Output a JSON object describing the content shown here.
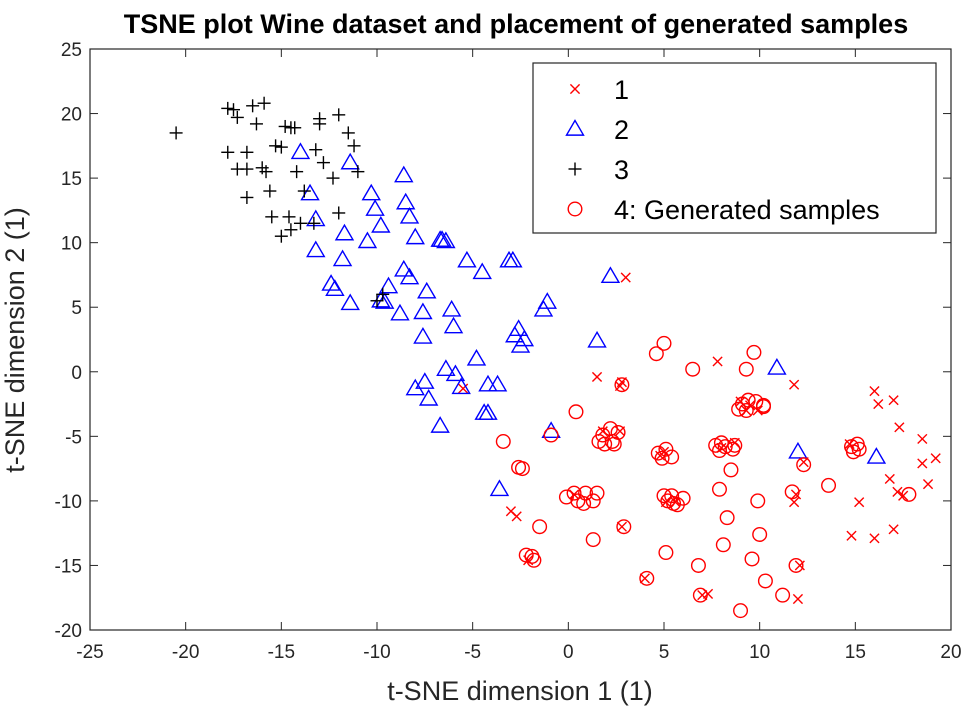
{
  "chart_data": {
    "type": "scatter",
    "title": "TSNE plot Wine dataset and placement of generated samples",
    "xlabel": "t-SNE dimension 1 (1)",
    "ylabel": "t-SNE dimension 2 (1)",
    "xlim": [
      -25,
      20
    ],
    "ylim": [
      -20,
      25
    ],
    "xticks": [
      -25,
      -20,
      -15,
      -10,
      -5,
      0,
      5,
      10,
      15,
      20
    ],
    "yticks": [
      -20,
      -15,
      -10,
      -5,
      0,
      5,
      10,
      15,
      20,
      25
    ],
    "grid": false,
    "legend_position": "top-right",
    "series": [
      {
        "name": "1",
        "marker": "x",
        "color": "#ff0000",
        "points": [
          [
            3,
            7.3
          ],
          [
            1.5,
            -0.4
          ],
          [
            2.8,
            -0.8
          ],
          [
            7.8,
            0.8
          ],
          [
            11.8,
            -1
          ],
          [
            16,
            -1.5
          ],
          [
            17,
            -2.2
          ],
          [
            16.2,
            -2.5
          ],
          [
            17.3,
            -4.3
          ],
          [
            18.5,
            -5.2
          ],
          [
            19.2,
            -6.7
          ],
          [
            18.5,
            -7.1
          ],
          [
            16.8,
            -8.3
          ],
          [
            17.2,
            -9.3
          ],
          [
            17.5,
            -9.6
          ],
          [
            18.8,
            -8.7
          ],
          [
            15.2,
            -10.1
          ],
          [
            17,
            -12.2
          ],
          [
            16,
            -12.9
          ],
          [
            14.8,
            -12.7
          ],
          [
            11.9,
            -9.5
          ],
          [
            11.8,
            -10.1
          ],
          [
            12.3,
            -7
          ],
          [
            14.7,
            -5.6
          ],
          [
            9.5,
            -2.6
          ],
          [
            9,
            -2.3
          ],
          [
            9.9,
            -3
          ],
          [
            9.3,
            -3
          ],
          [
            8.7,
            -5.5
          ],
          [
            8,
            -5.9
          ],
          [
            5,
            -6.2
          ],
          [
            4.8,
            -6.5
          ],
          [
            2.7,
            -4.6
          ],
          [
            1.8,
            -4.6
          ],
          [
            2.7,
            -1.1
          ],
          [
            -5.5,
            -1.3
          ],
          [
            -3,
            -10.8
          ],
          [
            -2.7,
            -11.2
          ],
          [
            -2.1,
            -14.6
          ],
          [
            0.3,
            -9.5
          ],
          [
            5.1,
            -10.1
          ],
          [
            5.6,
            -10.1
          ],
          [
            7,
            -17.3
          ],
          [
            7.3,
            -17.2
          ],
          [
            12,
            -17.6
          ],
          [
            12.1,
            -15
          ],
          [
            4,
            -16
          ],
          [
            2.8,
            -12
          ]
        ]
      },
      {
        "name": "2",
        "marker": "triangle",
        "color": "#0000ff",
        "points": [
          [
            -14,
            17
          ],
          [
            -13.5,
            13.8
          ],
          [
            -11.4,
            16.2
          ],
          [
            -8.6,
            15.2
          ],
          [
            -8.5,
            13.1
          ],
          [
            -8.3,
            12
          ],
          [
            -10.3,
            13.8
          ],
          [
            -10.1,
            12.6
          ],
          [
            -11.7,
            10.7
          ],
          [
            -10.5,
            10.1
          ],
          [
            -9.8,
            11.3
          ],
          [
            -13.2,
            11.8
          ],
          [
            -13.2,
            9.4
          ],
          [
            -11.8,
            8.7
          ],
          [
            -8,
            10.4
          ],
          [
            -6.7,
            10.2
          ],
          [
            -6.6,
            10.2
          ],
          [
            -6.4,
            10.1
          ],
          [
            -3.1,
            8.6
          ],
          [
            -2.9,
            8.6
          ],
          [
            -4.5,
            7.7
          ],
          [
            -5.3,
            8.6
          ],
          [
            -8.6,
            7.9
          ],
          [
            -8.3,
            7.3
          ],
          [
            -9.4,
            6.6
          ],
          [
            -9.6,
            5.4
          ],
          [
            -9.8,
            5.5
          ],
          [
            -7.4,
            6.2
          ],
          [
            -7.6,
            4.6
          ],
          [
            -8.8,
            4.5
          ],
          [
            -6.1,
            4.8
          ],
          [
            -6,
            3.5
          ],
          [
            -7.6,
            2.7
          ],
          [
            -12.4,
            6.8
          ],
          [
            -12.2,
            6.4
          ],
          [
            -11.4,
            5.3
          ],
          [
            -1.1,
            5.4
          ],
          [
            -1.3,
            4.8
          ],
          [
            -2.8,
            2.8
          ],
          [
            -2.6,
            3.3
          ],
          [
            -2.3,
            2.5
          ],
          [
            -2.5,
            2
          ],
          [
            1.5,
            2.4
          ],
          [
            2.2,
            7.4
          ],
          [
            -4.8,
            1
          ],
          [
            -6.4,
            0.2
          ],
          [
            -5.9,
            -0.2
          ],
          [
            -5.6,
            -1.2
          ],
          [
            -4.2,
            -1
          ],
          [
            -3.7,
            -1
          ],
          [
            -4.4,
            -3.2
          ],
          [
            -4.2,
            -3.2
          ],
          [
            -7.5,
            -0.8
          ],
          [
            -7.3,
            -2.1
          ],
          [
            -8,
            -1.3
          ],
          [
            -6.7,
            -4.2
          ],
          [
            -0.9,
            -4.6
          ],
          [
            10.9,
            0.3
          ],
          [
            12,
            -6.2
          ],
          [
            16.1,
            -6.6
          ],
          [
            -3.6,
            -9.1
          ]
        ]
      },
      {
        "name": "3",
        "marker": "plus",
        "color": "#000000",
        "points": [
          [
            -20.5,
            18.5
          ],
          [
            -17.8,
            20.4
          ],
          [
            -17.5,
            20.3
          ],
          [
            -16.5,
            20.6
          ],
          [
            -15.9,
            20.8
          ],
          [
            -17.3,
            19.7
          ],
          [
            -16.3,
            19.2
          ],
          [
            -14.8,
            19
          ],
          [
            -14.5,
            18.9
          ],
          [
            -13,
            19.6
          ],
          [
            -13,
            19.2
          ],
          [
            -12,
            19.9
          ],
          [
            -11.5,
            18.5
          ],
          [
            -14.3,
            18.9
          ],
          [
            -15.3,
            17.5
          ],
          [
            -15,
            17.4
          ],
          [
            -13.2,
            17.2
          ],
          [
            -17.8,
            17
          ],
          [
            -16.8,
            17
          ],
          [
            -16,
            15.8
          ],
          [
            -15.8,
            15.5
          ],
          [
            -17.3,
            15.7
          ],
          [
            -16.8,
            15.7
          ],
          [
            -12.8,
            16.2
          ],
          [
            -11.2,
            17.5
          ],
          [
            -11,
            15.5
          ],
          [
            -14.2,
            15.5
          ],
          [
            -13.8,
            14
          ],
          [
            -16.8,
            13.5
          ],
          [
            -15.6,
            14
          ],
          [
            -12.3,
            15
          ],
          [
            -12,
            12.3
          ],
          [
            -14.6,
            12
          ],
          [
            -14,
            11.5
          ],
          [
            -13.3,
            11.5
          ],
          [
            -15.5,
            12
          ],
          [
            -15,
            10.5
          ],
          [
            -14.5,
            11
          ],
          [
            -10,
            5.5
          ],
          [
            -9.7,
            6
          ]
        ]
      },
      {
        "name": "4: Generated samples",
        "marker": "circle",
        "color": "#ff0000",
        "points": [
          [
            5,
            2.2
          ],
          [
            4.6,
            1.4
          ],
          [
            6.5,
            0.2
          ],
          [
            9.7,
            1.5
          ],
          [
            9.3,
            0.2
          ],
          [
            2.8,
            -1
          ],
          [
            9.1,
            -2.5
          ],
          [
            9.4,
            -2.2
          ],
          [
            9.8,
            -2.3
          ],
          [
            10.2,
            -2.7
          ],
          [
            10.2,
            -2.6
          ],
          [
            8.9,
            -2.9
          ],
          [
            9.3,
            -3
          ],
          [
            8,
            -5.5
          ],
          [
            7.7,
            -5.7
          ],
          [
            8.2,
            -5.8
          ],
          [
            8.7,
            -5.7
          ],
          [
            8.6,
            -6
          ],
          [
            7.9,
            -6.1
          ],
          [
            2.2,
            -4.4
          ],
          [
            2.6,
            -4.7
          ],
          [
            1.8,
            -4.9
          ],
          [
            2.3,
            -5.4
          ],
          [
            1.6,
            -5.4
          ],
          [
            1.9,
            -5.6
          ],
          [
            2.4,
            -5.6
          ],
          [
            -0.9,
            -4.9
          ],
          [
            0.4,
            -3.1
          ],
          [
            -3.4,
            -5.4
          ],
          [
            -2.6,
            -7.4
          ],
          [
            -2.4,
            -7.5
          ],
          [
            4.7,
            -6.3
          ],
          [
            5.1,
            -6
          ],
          [
            4.9,
            -6.7
          ],
          [
            5.4,
            -6.6
          ],
          [
            8.5,
            -7.6
          ],
          [
            -0.1,
            -9.7
          ],
          [
            0.3,
            -9.4
          ],
          [
            0.5,
            -10
          ],
          [
            0.9,
            -9.4
          ],
          [
            1.3,
            -10
          ],
          [
            0.8,
            -10.2
          ],
          [
            1.5,
            -9.4
          ],
          [
            5,
            -9.6
          ],
          [
            5.4,
            -9.6
          ],
          [
            5.5,
            -10.2
          ],
          [
            5.7,
            -10.3
          ],
          [
            5.2,
            -10
          ],
          [
            6,
            -9.8
          ],
          [
            7.9,
            -9.1
          ],
          [
            9.9,
            -10
          ],
          [
            11.7,
            -9.3
          ],
          [
            13.6,
            -8.8
          ],
          [
            14.8,
            -5.8
          ],
          [
            15.1,
            -5.6
          ],
          [
            14.9,
            -6.2
          ],
          [
            15.2,
            -6
          ],
          [
            17.8,
            -9.5
          ],
          [
            12.3,
            -7.2
          ],
          [
            -1.5,
            -12
          ],
          [
            1.3,
            -13
          ],
          [
            2.9,
            -12
          ],
          [
            -2.2,
            -14.2
          ],
          [
            -1.8,
            -14.6
          ],
          [
            -1.9,
            -14.3
          ],
          [
            5.1,
            -14
          ],
          [
            6.8,
            -15
          ],
          [
            8.1,
            -13.4
          ],
          [
            8.3,
            -11.3
          ],
          [
            10,
            -12.6
          ],
          [
            9.6,
            -14.5
          ],
          [
            10.3,
            -16.2
          ],
          [
            11.9,
            -15
          ],
          [
            11.2,
            -17.3
          ],
          [
            9,
            -18.5
          ],
          [
            6.9,
            -17.3
          ],
          [
            4.1,
            -16
          ]
        ]
      }
    ]
  }
}
